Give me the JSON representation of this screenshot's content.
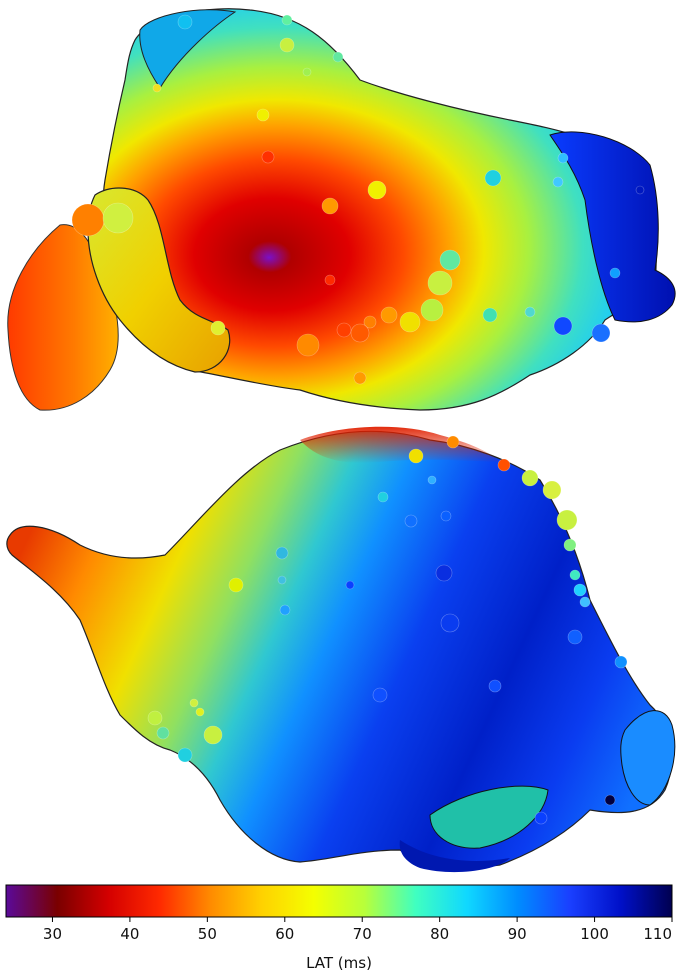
{
  "colorbar": {
    "label": "LAT (ms)",
    "ticks": [
      30,
      40,
      50,
      60,
      70,
      80,
      90,
      100,
      110
    ],
    "range": [
      24,
      110
    ],
    "colors": [
      "#5a0a9a",
      "#7a0000",
      "#d40000",
      "#ff2a00",
      "#ff8c00",
      "#ffd200",
      "#f4ff00",
      "#b8ff3a",
      "#40ffc0",
      "#10d8ff",
      "#008cff",
      "#1a40ff",
      "#0010c8",
      "#000050"
    ]
  },
  "views": [
    {
      "name": "upper-atrium-view"
    },
    {
      "name": "lower-atrium-view"
    }
  ]
}
